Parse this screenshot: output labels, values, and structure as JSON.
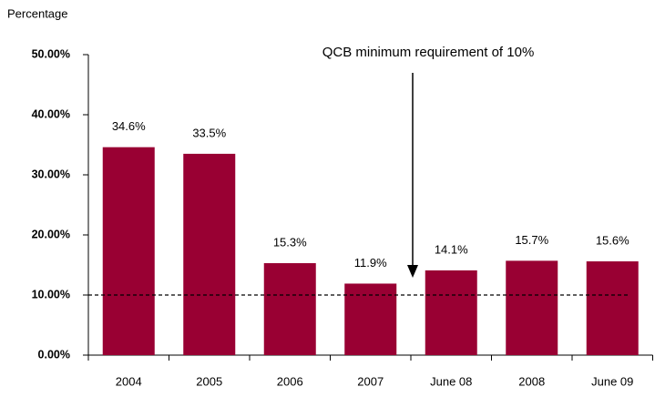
{
  "chart_data": {
    "type": "bar",
    "y_axis_label": "Percentage",
    "annotation": "QCB minimum requirement of 10%",
    "categories": [
      "2004",
      "2005",
      "2006",
      "2007",
      "June 08",
      "2008",
      "June 09"
    ],
    "values": [
      34.6,
      33.5,
      15.3,
      11.9,
      14.1,
      15.7,
      15.6
    ],
    "value_labels": [
      "34.6%",
      "33.5%",
      "15.3%",
      "11.9%",
      "14.1%",
      "15.7%",
      "15.6%"
    ],
    "color": "#990033",
    "reference_line": 10,
    "ylim": [
      0,
      50
    ],
    "yticks": [
      {
        "value": 0,
        "label": "0.00%"
      },
      {
        "value": 10,
        "label": "10.00%"
      },
      {
        "value": 20,
        "label": "20.00%"
      },
      {
        "value": 30,
        "label": "30.00%"
      },
      {
        "value": 40,
        "label": "40.00%"
      },
      {
        "value": 50,
        "label": "50.00%"
      }
    ],
    "grid": false
  }
}
